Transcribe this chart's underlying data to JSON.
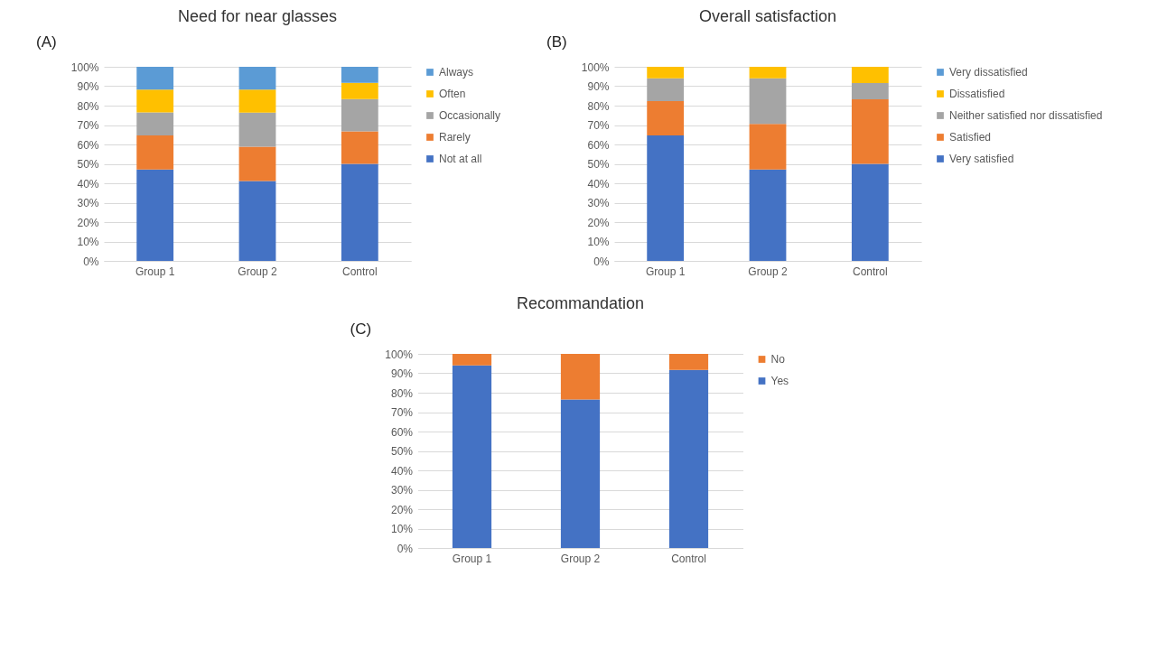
{
  "chart_data": [
    {
      "type": "bar",
      "title": "Need for near glasses",
      "annotations": [
        "(A)"
      ],
      "categories": [
        "Group 1",
        "Group 2",
        "Control"
      ],
      "stacked": true,
      "ylim": [
        0,
        100
      ],
      "yticks": [
        {
          "value": 0,
          "label": "0%"
        },
        {
          "value": 10,
          "label": "10%"
        },
        {
          "value": 20,
          "label": "20%"
        },
        {
          "value": 30,
          "label": "30%"
        },
        {
          "value": 40,
          "label": "40%"
        },
        {
          "value": 50,
          "label": "50%"
        },
        {
          "value": 60,
          "label": "60%"
        },
        {
          "value": 70,
          "label": "70%"
        },
        {
          "value": 80,
          "label": "80%"
        },
        {
          "value": 90,
          "label": "90%"
        },
        {
          "value": 100,
          "label": "100%"
        }
      ],
      "grid": "y",
      "legend": "right",
      "series": [
        {
          "name": "Not at all",
          "color": "#4472c4",
          "values": [
            47.1,
            41.2,
            50
          ]
        },
        {
          "name": "Rarely",
          "color": "#ed7d31",
          "values": [
            17.6,
            17.6,
            16.7
          ]
        },
        {
          "name": "Occasionally",
          "color": "#a5a5a5",
          "values": [
            11.8,
            17.6,
            16.7
          ]
        },
        {
          "name": "Often",
          "color": "#ffc000",
          "values": [
            11.8,
            11.8,
            8.3
          ]
        },
        {
          "name": "Always",
          "color": "#5b9bd5",
          "values": [
            11.7,
            11.8,
            8.3
          ]
        }
      ]
    },
    {
      "type": "bar",
      "title": "Overall satisfaction",
      "annotations": [
        "(B)"
      ],
      "categories": [
        "Group 1",
        "Group 2",
        "Control"
      ],
      "stacked": true,
      "ylim": [
        0,
        100
      ],
      "yticks": [
        {
          "value": 0,
          "label": "0%"
        },
        {
          "value": 10,
          "label": "10%"
        },
        {
          "value": 20,
          "label": "20%"
        },
        {
          "value": 30,
          "label": "30%"
        },
        {
          "value": 40,
          "label": "40%"
        },
        {
          "value": 50,
          "label": "50%"
        },
        {
          "value": 60,
          "label": "60%"
        },
        {
          "value": 70,
          "label": "70%"
        },
        {
          "value": 80,
          "label": "80%"
        },
        {
          "value": 90,
          "label": "90%"
        },
        {
          "value": 100,
          "label": "100%"
        }
      ],
      "grid": "y",
      "legend": "right",
      "series": [
        {
          "name": "Very satisfied",
          "color": "#4472c4",
          "values": [
            64.7,
            47.1,
            50
          ]
        },
        {
          "name": "Satisfied",
          "color": "#ed7d31",
          "values": [
            17.6,
            23.5,
            33.3
          ]
        },
        {
          "name": "Neither satisfied nor dissatisfied",
          "color": "#a5a5a5",
          "values": [
            11.8,
            23.5,
            8.3
          ]
        },
        {
          "name": "Dissatisfied",
          "color": "#ffc000",
          "values": [
            5.9,
            5.9,
            8.4
          ]
        },
        {
          "name": "Very dissatisfied",
          "color": "#5b9bd5",
          "values": [
            0,
            0,
            0
          ]
        }
      ]
    },
    {
      "type": "bar",
      "title": "Recommandation",
      "annotations": [
        "(C)"
      ],
      "categories": [
        "Group 1",
        "Group 2",
        "Control"
      ],
      "stacked": true,
      "ylim": [
        0,
        100
      ],
      "yticks": [
        {
          "value": 0,
          "label": "0%"
        },
        {
          "value": 10,
          "label": "10%"
        },
        {
          "value": 20,
          "label": "20%"
        },
        {
          "value": 30,
          "label": "30%"
        },
        {
          "value": 40,
          "label": "40%"
        },
        {
          "value": 50,
          "label": "50%"
        },
        {
          "value": 60,
          "label": "60%"
        },
        {
          "value": 70,
          "label": "70%"
        },
        {
          "value": 80,
          "label": "80%"
        },
        {
          "value": 90,
          "label": "90%"
        },
        {
          "value": 100,
          "label": "100%"
        }
      ],
      "grid": "y",
      "legend": "right",
      "series": [
        {
          "name": "Yes",
          "color": "#4472c4",
          "values": [
            94.1,
            76.5,
            91.7
          ]
        },
        {
          "name": "No",
          "color": "#ed7d31",
          "values": [
            5.9,
            23.5,
            8.3
          ]
        }
      ]
    }
  ]
}
